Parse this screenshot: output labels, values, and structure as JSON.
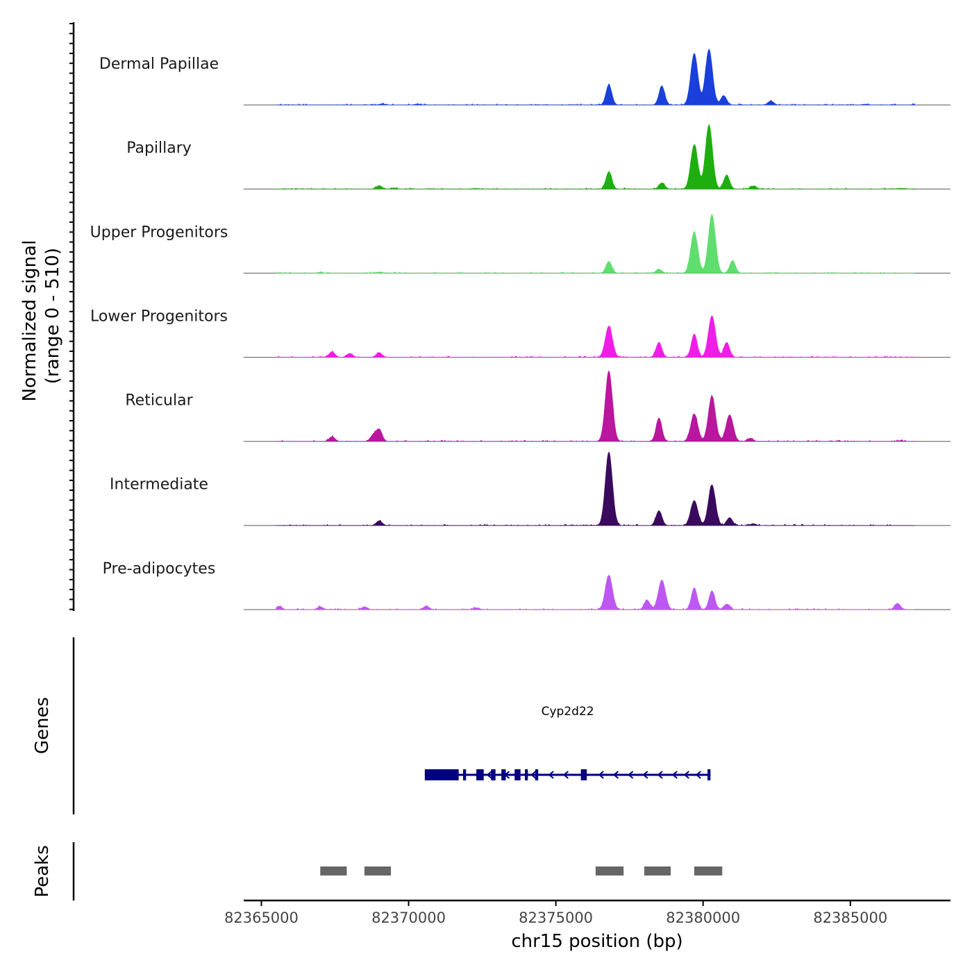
{
  "chart_data": {
    "type": "area",
    "title": "",
    "xlabel": "chr15 position (bp)",
    "ylabel": "Normalized signal",
    "ylabel_range": "(range 0 - 510)",
    "xlim": [
      82364400,
      82388400
    ],
    "ylim": [
      0,
      510
    ],
    "x_ticks": [
      82365000,
      82370000,
      82375000,
      82380000,
      82385000
    ],
    "x_tick_labels": [
      "82365000",
      "82370000",
      "82375000",
      "82380000",
      "82385000"
    ],
    "series": [
      {
        "name": "Dermal Papillae",
        "color": "#1a3fdb",
        "peaks": [
          [
            82369100,
            7
          ],
          [
            82370300,
            6
          ],
          [
            82376800,
            130
          ],
          [
            82378600,
            120
          ],
          [
            82379700,
            330
          ],
          [
            82380200,
            355
          ],
          [
            82380700,
            60
          ],
          [
            82382300,
            25
          ],
          [
            82385500,
            5
          ],
          [
            82387200,
            5
          ]
        ]
      },
      {
        "name": "Papillary",
        "color": "#1fae0f",
        "peaks": [
          [
            82369000,
            22
          ],
          [
            82369500,
            8
          ],
          [
            82376800,
            110
          ],
          [
            82378600,
            40
          ],
          [
            82379700,
            285
          ],
          [
            82380200,
            410
          ],
          [
            82380800,
            90
          ],
          [
            82381700,
            20
          ],
          [
            82386700,
            5
          ]
        ]
      },
      {
        "name": "Upper Progenitors",
        "color": "#5fdd6f",
        "peaks": [
          [
            82367000,
            6
          ],
          [
            82369000,
            7
          ],
          [
            82376800,
            75
          ],
          [
            82378500,
            25
          ],
          [
            82379700,
            260
          ],
          [
            82380300,
            375
          ],
          [
            82381000,
            80
          ]
        ]
      },
      {
        "name": "Lower Progenitors",
        "color": "#f01de8",
        "peaks": [
          [
            82367400,
            35
          ],
          [
            82368000,
            25
          ],
          [
            82369000,
            30
          ],
          [
            82376800,
            200
          ],
          [
            82378500,
            95
          ],
          [
            82379700,
            150
          ],
          [
            82380300,
            265
          ],
          [
            82380800,
            95
          ]
        ]
      },
      {
        "name": "Reticular",
        "color": "#b8179e",
        "peaks": [
          [
            82367400,
            30
          ],
          [
            82368800,
            40
          ],
          [
            82369000,
            75
          ],
          [
            82376800,
            450
          ],
          [
            82378500,
            150
          ],
          [
            82379700,
            175
          ],
          [
            82380300,
            290
          ],
          [
            82380900,
            170
          ],
          [
            82381600,
            20
          ],
          [
            82386700,
            5
          ]
        ]
      },
      {
        "name": "Intermediate",
        "color": "#3a0a5e",
        "peaks": [
          [
            82369000,
            30
          ],
          [
            82376800,
            470
          ],
          [
            82378500,
            95
          ],
          [
            82379700,
            160
          ],
          [
            82380300,
            260
          ],
          [
            82380900,
            50
          ],
          [
            82381700,
            12
          ]
        ]
      },
      {
        "name": "Pre-adipocytes",
        "color": "#bd57f2",
        "peaks": [
          [
            82365600,
            22
          ],
          [
            82367000,
            18
          ],
          [
            82368500,
            18
          ],
          [
            82370600,
            22
          ],
          [
            82372300,
            12
          ],
          [
            82376800,
            220
          ],
          [
            82378100,
            60
          ],
          [
            82378600,
            190
          ],
          [
            82379700,
            140
          ],
          [
            82380300,
            120
          ],
          [
            82380800,
            35
          ],
          [
            82386600,
            40
          ]
        ]
      }
    ],
    "gene": {
      "name": "Cyp2d22",
      "color": "#00007f",
      "start": 82370550,
      "end": 82380250,
      "strand": "-"
    },
    "peaks_track": [
      [
        82367000,
        82367900
      ],
      [
        82368500,
        82369400
      ],
      [
        82376350,
        82377300
      ],
      [
        82378000,
        82378900
      ],
      [
        82379700,
        82380650
      ]
    ],
    "panel_labels": {
      "genes": "Genes",
      "peaks": "Peaks"
    }
  }
}
